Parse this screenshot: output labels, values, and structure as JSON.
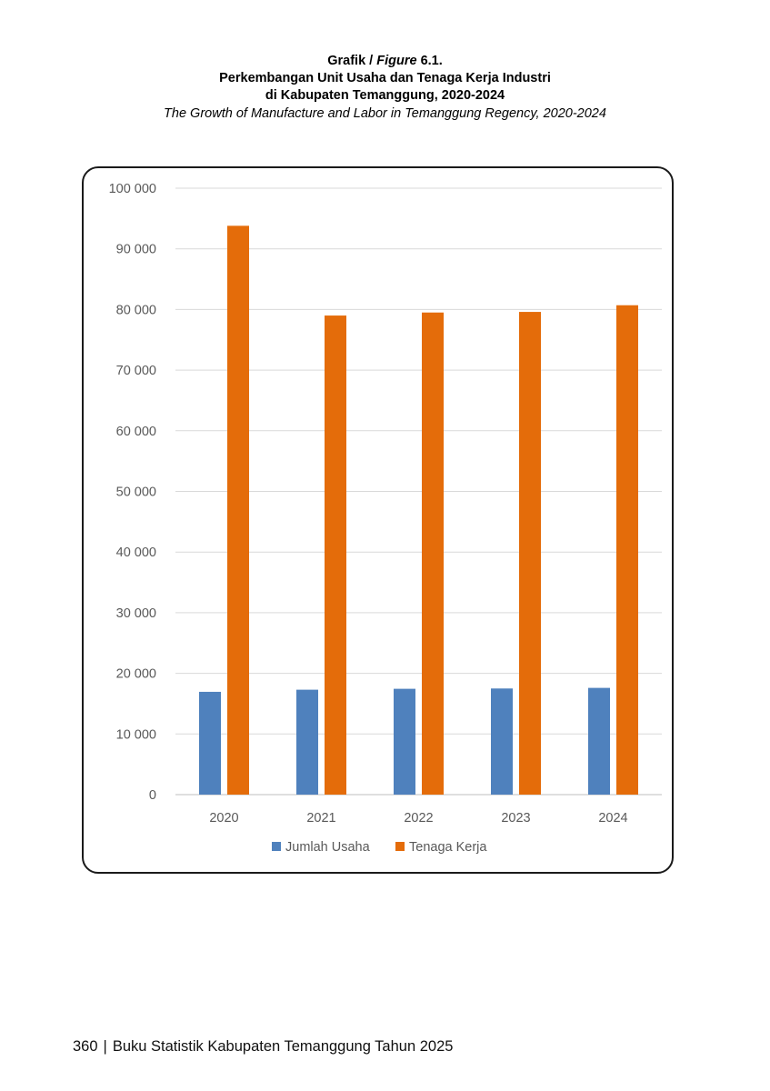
{
  "page": {
    "title_prefix": "Grafik / ",
    "title_figure": "Figure",
    "title_number": " 6.1.",
    "title_line2": "Perkembangan Unit Usaha  dan Tenaga Kerja Industri",
    "title_line3": "di Kabupaten Temanggung, 2020-2024",
    "title_en": "The Growth of Manufacture and Labor in Temanggung Regency, 2020-2024",
    "footer_page": "360",
    "footer_sep": "|",
    "footer_text": "Buku Statistik Kabupaten Temanggung Tahun 2025"
  },
  "chart_data": {
    "type": "bar",
    "title": "",
    "xlabel": "",
    "ylabel": "",
    "categories": [
      "2020",
      "2021",
      "2022",
      "2023",
      "2024"
    ],
    "series": [
      {
        "name": "Jumlah Usaha",
        "color": "#4f81bd",
        "values": [
          16950,
          17300,
          17450,
          17500,
          17600
        ]
      },
      {
        "name": "Tenaga Kerja",
        "color": "#e46c0a",
        "values": [
          93800,
          79000,
          79500,
          79600,
          80700
        ]
      }
    ],
    "ylim": [
      0,
      100000
    ],
    "yticks": [
      0,
      10000,
      20000,
      30000,
      40000,
      50000,
      60000,
      70000,
      80000,
      90000,
      100000
    ],
    "ytick_labels": [
      "0",
      "10 000",
      "20 000",
      "30 000",
      "40 000",
      "50 000",
      "60 000",
      "70 000",
      "80 000",
      "90 000",
      "100 000"
    ],
    "grid": true,
    "legend_position": "bottom"
  }
}
